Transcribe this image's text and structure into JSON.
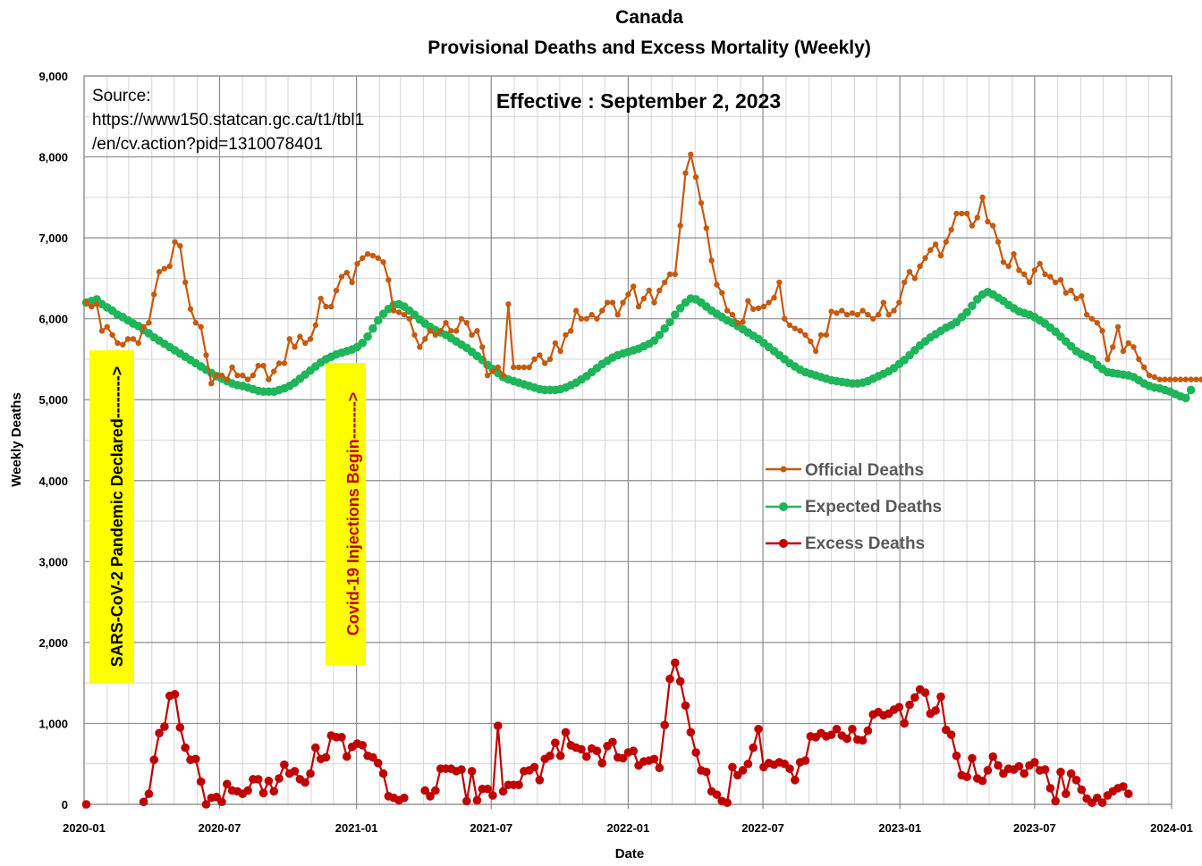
{
  "chart_data": {
    "type": "line",
    "title": "Canada",
    "subtitle": "Provisional Deaths and Excess Mortality (Weekly)",
    "xlabel": "Date",
    "ylabel": "Weekly Deaths",
    "xlim": [
      "2020-01-01",
      "2024-01-01"
    ],
    "ylim": [
      0,
      9000
    ],
    "grid": true,
    "legend_position": "center-right",
    "x_ticks": [
      {
        "date": "2020-01-01",
        "label": "2020-01"
      },
      {
        "date": "2020-07-01",
        "label": "2020-07"
      },
      {
        "date": "2021-01-01",
        "label": "2021-01"
      },
      {
        "date": "2021-07-01",
        "label": "2021-07"
      },
      {
        "date": "2022-01-01",
        "label": "2022-01"
      },
      {
        "date": "2022-07-01",
        "label": "2022-07"
      },
      {
        "date": "2023-01-01",
        "label": "2023-01"
      },
      {
        "date": "2023-07-01",
        "label": "2023-07"
      },
      {
        "date": "2024-01-01",
        "label": "2024-01"
      }
    ],
    "y_ticks": [
      {
        "value": 0,
        "label": "0"
      },
      {
        "value": 1000,
        "label": "1,000"
      },
      {
        "value": 2000,
        "label": "2,000"
      },
      {
        "value": 3000,
        "label": "3,000"
      },
      {
        "value": 4000,
        "label": "4,000"
      },
      {
        "value": 5000,
        "label": "5,000"
      },
      {
        "value": 6000,
        "label": "6,000"
      },
      {
        "value": 7000,
        "label": "7,000"
      },
      {
        "value": 8000,
        "label": "8,000"
      },
      {
        "value": 9000,
        "label": "9,000"
      }
    ],
    "source_lines": [
      "Source:",
      "https://www150.statcan.gc.ca/t1/tbl1",
      "/en/cv.action?pid=1310078401"
    ],
    "effective": "Effective : September 2, 2023",
    "annotations": [
      {
        "text": "SARS-CoV-2 Pandemic Declared-------->",
        "date": "2020-03-11",
        "color": "#000000",
        "background": "#ffff00"
      },
      {
        "text": "Covid-19 Injections Begin------->",
        "date": "2020-12-14",
        "color": "#c00000",
        "background": "#ffff00"
      }
    ],
    "series": [
      {
        "name": "Official Deaths",
        "color": "#c55a11",
        "marker_size": "small",
        "start_date": "2020-01-04",
        "values": [
          6200,
          6150,
          6180,
          5850,
          5900,
          5800,
          5700,
          5680,
          5750,
          5750,
          5700,
          5900,
          5950,
          6300,
          6580,
          6620,
          6650,
          6950,
          6900,
          6450,
          6120,
          5950,
          5900,
          5550,
          5200,
          5300,
          5300,
          5250,
          5400,
          5300,
          5300,
          5250,
          5300,
          5420,
          5420,
          5250,
          5350,
          5450,
          5450,
          5750,
          5650,
          5780,
          5700,
          5750,
          5920,
          6250,
          6150,
          6150,
          6350,
          6520,
          6570,
          6450,
          6680,
          6750,
          6800,
          6780,
          6750,
          6700,
          6480,
          6100,
          6080,
          6050,
          6000,
          5800,
          5650,
          5750,
          5850,
          5800,
          5850,
          5950,
          5850,
          5850,
          6000,
          5950,
          5800,
          5850,
          5650,
          5300,
          5350,
          5400,
          5300,
          6180,
          5400,
          5400,
          5400,
          5400,
          5500,
          5550,
          5450,
          5500,
          5700,
          5600,
          5800,
          5850,
          6100,
          6000,
          6000,
          6050,
          6000,
          6100,
          6200,
          6200,
          6050,
          6200,
          6300,
          6400,
          6150,
          6250,
          6350,
          6200,
          6350,
          6450,
          6550,
          6550,
          7150,
          7800,
          8030,
          7750,
          7430,
          7120,
          6720,
          6420,
          6320,
          6100,
          6050,
          5950,
          5960,
          6220,
          6120,
          6130,
          6150,
          6200,
          6260,
          6450,
          6000,
          5920,
          5880,
          5850,
          5800,
          5720,
          5600,
          5800,
          5800,
          6090,
          6070,
          6100,
          6050,
          6070,
          6050,
          6100,
          6050,
          6000,
          6050,
          6200,
          6050,
          6100,
          6200,
          6450,
          6580,
          6500,
          6650,
          6750,
          6850,
          6920,
          6780,
          6950,
          7100,
          7300,
          7300,
          7300,
          7150,
          7250,
          7500,
          7200,
          7150,
          6950,
          6700,
          6650,
          6800,
          6600,
          6550,
          6450,
          6600,
          6680,
          6550,
          6520,
          6450,
          6480,
          6320,
          6350,
          6250,
          6280,
          6050,
          6000,
          5950,
          5850,
          5500,
          5650,
          5900,
          5600,
          5700,
          5650,
          5500,
          5400,
          5300,
          5280,
          5250,
          5250,
          5250,
          5250,
          5250,
          5250,
          5250,
          5250,
          5250,
          5250
        ]
      },
      {
        "name": "Expected Deaths",
        "color": "#1fb55a",
        "marker_size": "large",
        "start_date": "2020-01-04",
        "values": [
          6200,
          6220,
          6240,
          6180,
          6140,
          6100,
          6050,
          6020,
          5980,
          5940,
          5910,
          5860,
          5820,
          5770,
          5730,
          5690,
          5650,
          5610,
          5570,
          5530,
          5490,
          5450,
          5410,
          5370,
          5330,
          5290,
          5260,
          5230,
          5200,
          5180,
          5170,
          5150,
          5130,
          5110,
          5100,
          5100,
          5100,
          5120,
          5140,
          5170,
          5210,
          5260,
          5310,
          5360,
          5410,
          5460,
          5500,
          5530,
          5560,
          5580,
          5600,
          5620,
          5650,
          5700,
          5780,
          5880,
          5980,
          6060,
          6120,
          6170,
          6180,
          6150,
          6100,
          6050,
          5990,
          5940,
          5900,
          5860,
          5830,
          5800,
          5760,
          5720,
          5680,
          5640,
          5590,
          5540,
          5490,
          5430,
          5380,
          5330,
          5280,
          5250,
          5230,
          5210,
          5190,
          5170,
          5150,
          5130,
          5120,
          5120,
          5120,
          5130,
          5150,
          5180,
          5210,
          5250,
          5290,
          5340,
          5390,
          5440,
          5480,
          5520,
          5550,
          5570,
          5590,
          5610,
          5630,
          5660,
          5690,
          5730,
          5800,
          5880,
          5960,
          6050,
          6130,
          6200,
          6250,
          6240,
          6200,
          6150,
          6100,
          6060,
          6020,
          5980,
          5950,
          5910,
          5870,
          5830,
          5790,
          5750,
          5700,
          5650,
          5600,
          5550,
          5500,
          5450,
          5410,
          5370,
          5340,
          5320,
          5300,
          5280,
          5260,
          5240,
          5230,
          5220,
          5210,
          5200,
          5200,
          5210,
          5230,
          5260,
          5290,
          5320,
          5350,
          5390,
          5440,
          5490,
          5550,
          5610,
          5670,
          5720,
          5770,
          5810,
          5850,
          5890,
          5920,
          5960,
          6020,
          6080,
          6160,
          6240,
          6300,
          6330,
          6300,
          6260,
          6220,
          6170,
          6130,
          6090,
          6070,
          6050,
          6020,
          5980,
          5940,
          5890,
          5840,
          5780,
          5720,
          5660,
          5600,
          5560,
          5530,
          5500,
          5430,
          5380,
          5340,
          5330,
          5320,
          5310,
          5300,
          5280,
          5240,
          5200,
          5170,
          5150,
          5140,
          5120,
          5100,
          5070,
          5040,
          5020,
          5120
        ]
      },
      {
        "name": "Excess Deaths",
        "color": "#c00000",
        "marker_size": "large",
        "start_date": "2020-01-04",
        "values": [
          0,
          null,
          null,
          null,
          null,
          null,
          null,
          null,
          null,
          null,
          null,
          30,
          130,
          550,
          880,
          960,
          1340,
          1360,
          950,
          700,
          550,
          560,
          280,
          0,
          80,
          90,
          30,
          250,
          170,
          160,
          130,
          170,
          310,
          310,
          140,
          290,
          160,
          320,
          490,
          380,
          410,
          310,
          270,
          380,
          700,
          560,
          580,
          850,
          830,
          830,
          590,
          710,
          750,
          730,
          600,
          580,
          510,
          380,
          100,
          80,
          50,
          80,
          null,
          null,
          null,
          170,
          100,
          170,
          440,
          440,
          440,
          410,
          430,
          40,
          410,
          50,
          190,
          190,
          110,
          970,
          160,
          240,
          240,
          240,
          410,
          420,
          460,
          300,
          560,
          600,
          760,
          600,
          890,
          730,
          700,
          680,
          590,
          690,
          660,
          510,
          720,
          770,
          580,
          570,
          640,
          660,
          480,
          530,
          540,
          560,
          450,
          980,
          1550,
          1750,
          1520,
          1220,
          890,
          640,
          420,
          400,
          160,
          120,
          40,
          20,
          460,
          360,
          420,
          500,
          700,
          930,
          460,
          510,
          490,
          520,
          500,
          440,
          300,
          520,
          540,
          840,
          830,
          880,
          840,
          860,
          930,
          850,
          810,
          930,
          800,
          790,
          910,
          1110,
          1140,
          1100,
          1120,
          1170,
          1200,
          1000,
          1230,
          1320,
          1420,
          1380,
          1120,
          1160,
          1330,
          920,
          860,
          600,
          360,
          340,
          570,
          320,
          290,
          420,
          590,
          480,
          380,
          440,
          430,
          470,
          380,
          480,
          520,
          420,
          430,
          200,
          40,
          400,
          130,
          380,
          300,
          180,
          70,
          20,
          80,
          20,
          110,
          160,
          200,
          220,
          130
        ]
      }
    ]
  }
}
